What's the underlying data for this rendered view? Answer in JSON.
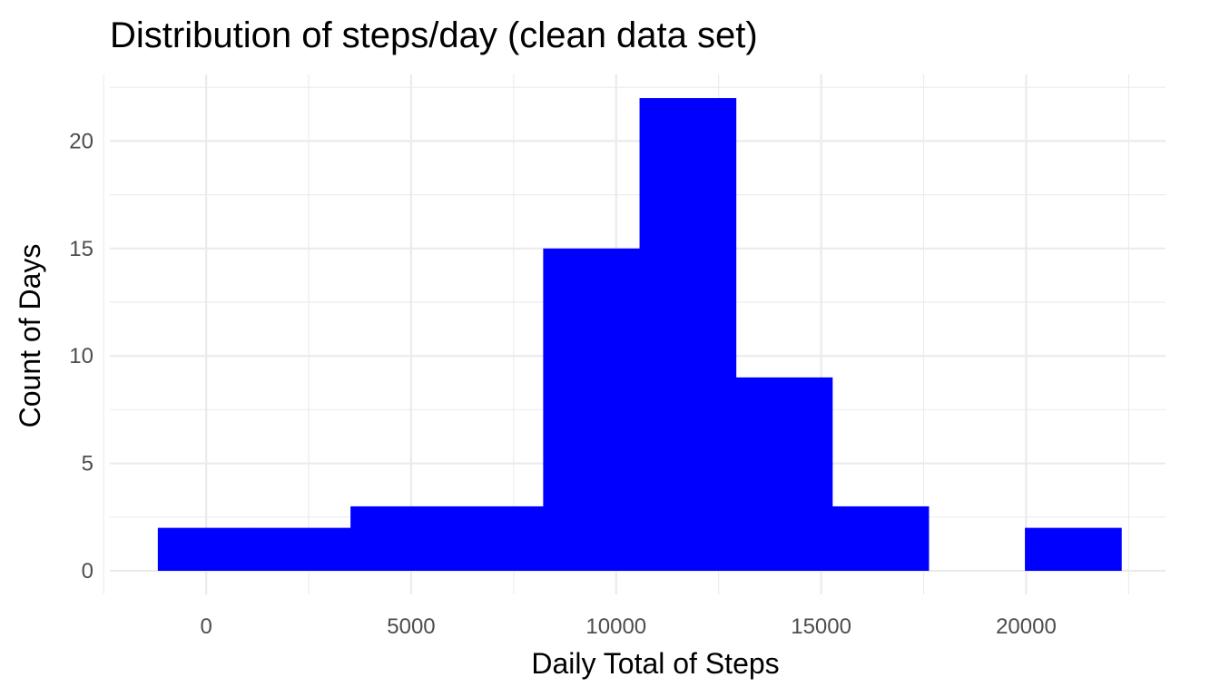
{
  "chart_data": {
    "type": "bar",
    "title": "Distribution of steps/day (clean data set)",
    "xlabel": "Daily Total of Steps",
    "ylabel": "Count of Days",
    "xlim": [
      -2350,
      23400
    ],
    "ylim": [
      -1.1,
      23.1
    ],
    "x_ticks": [
      0,
      5000,
      10000,
      15000,
      20000
    ],
    "x_minor_ticks": [
      -2500,
      2500,
      7500,
      12500,
      17500,
      22500
    ],
    "y_ticks": [
      0,
      5,
      10,
      15,
      20
    ],
    "y_minor_ticks": [
      2.5,
      7.5,
      12.5,
      17.5,
      22.5
    ],
    "x_tick_labels": [
      "0",
      "5000",
      "10000",
      "15000",
      "20000"
    ],
    "y_tick_labels": [
      "0",
      "5",
      "10",
      "15",
      "20"
    ],
    "bins": [
      {
        "x0": -1180,
        "x1": 1170,
        "count": 2
      },
      {
        "x0": 1170,
        "x1": 3520,
        "count": 2
      },
      {
        "x0": 3520,
        "x1": 5870,
        "count": 3
      },
      {
        "x0": 5870,
        "x1": 8220,
        "count": 3
      },
      {
        "x0": 8220,
        "x1": 10570,
        "count": 15
      },
      {
        "x0": 10570,
        "x1": 12920,
        "count": 22
      },
      {
        "x0": 12920,
        "x1": 15270,
        "count": 9
      },
      {
        "x0": 15270,
        "x1": 17620,
        "count": 3
      },
      {
        "x0": 17620,
        "x1": 19970,
        "count": 0
      },
      {
        "x0": 19970,
        "x1": 22320,
        "count": 2
      }
    ],
    "bar_color": "#0000ff",
    "grid": true,
    "legend": "none"
  }
}
